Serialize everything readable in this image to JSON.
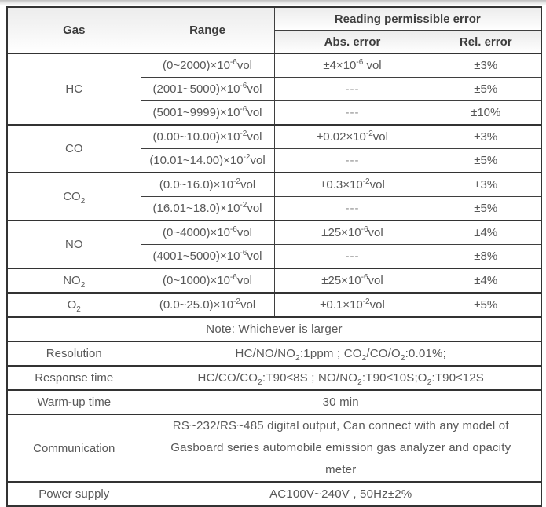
{
  "colors": {
    "border_thick": "#333333",
    "border_thin": "#3f3f3f",
    "header_text": "#3d3d3d",
    "body_text": "#585858",
    "header_bg_top": "#ececec",
    "page_bg": "#ffffff"
  },
  "table": {
    "header": {
      "gas": "Gas",
      "range": "Range",
      "reading_error": "Reading permissible error",
      "abs_error": "Abs. error",
      "rel_error": "Rel. error"
    },
    "groups": [
      {
        "gas": "HC",
        "rows": [
          {
            "range": [
              [
                "t",
                "(0~2000)×10"
              ],
              [
                "sup",
                "-6"
              ],
              [
                "t",
                "vol"
              ]
            ],
            "abs": [
              [
                "t",
                "±4×10"
              ],
              [
                "sup",
                "-6"
              ],
              [
                "t",
                " vol"
              ]
            ],
            "rel": "±3%"
          },
          {
            "range": [
              [
                "t",
                "(2001~5000)×10"
              ],
              [
                "sup",
                "-6"
              ],
              [
                "t",
                "vol"
              ]
            ],
            "abs": "---",
            "rel": "±5%"
          },
          {
            "range": [
              [
                "t",
                "(5001~9999)×10"
              ],
              [
                "sup",
                "-6"
              ],
              [
                "t",
                "vol"
              ]
            ],
            "abs": "---",
            "rel": "±10%"
          }
        ]
      },
      {
        "gas": "CO",
        "rows": [
          {
            "range": [
              [
                "t",
                "(0.00~10.00)×10"
              ],
              [
                "sup",
                "-2"
              ],
              [
                "t",
                "vol"
              ]
            ],
            "abs": [
              [
                "t",
                "±0.02×10"
              ],
              [
                "sup",
                "-2"
              ],
              [
                "t",
                "vol"
              ]
            ],
            "rel": "±3%"
          },
          {
            "range": [
              [
                "t",
                "(10.01~14.00)×10"
              ],
              [
                "sup",
                "-2"
              ],
              [
                "t",
                "vol"
              ]
            ],
            "abs": "---",
            "rel": "±5%"
          }
        ]
      },
      {
        "gas": [
          [
            "t",
            "CO"
          ],
          [
            "sub",
            "2"
          ]
        ],
        "rows": [
          {
            "range": [
              [
                "t",
                "(0.0~16.0)×10"
              ],
              [
                "sup",
                "-2"
              ],
              [
                "t",
                "vol"
              ]
            ],
            "abs": [
              [
                "t",
                "±0.3×10"
              ],
              [
                "sup",
                "-2"
              ],
              [
                "t",
                "vol"
              ]
            ],
            "rel": "±3%"
          },
          {
            "range": [
              [
                "t",
                "(16.01~18.0)×10"
              ],
              [
                "sup",
                "-2"
              ],
              [
                "t",
                "vol"
              ]
            ],
            "abs": "---",
            "rel": "±5%"
          }
        ]
      },
      {
        "gas": "NO",
        "rows": [
          {
            "range": [
              [
                "t",
                "(0~4000)×10"
              ],
              [
                "sup",
                "-6"
              ],
              [
                "t",
                "vol"
              ]
            ],
            "abs": [
              [
                "t",
                "±25×10"
              ],
              [
                "sup",
                "-6"
              ],
              [
                "t",
                "vol"
              ]
            ],
            "rel": "±4%"
          },
          {
            "range": [
              [
                "t",
                "(4001~5000)×10"
              ],
              [
                "sup",
                "-6"
              ],
              [
                "t",
                "vol"
              ]
            ],
            "abs": "---",
            "rel": "±8%"
          }
        ]
      },
      {
        "gas": [
          [
            "t",
            "NO"
          ],
          [
            "sub",
            "2"
          ]
        ],
        "rows": [
          {
            "range": [
              [
                "t",
                "(0~1000)×10"
              ],
              [
                "sup",
                "-6"
              ],
              [
                "t",
                "vol"
              ]
            ],
            "abs": [
              [
                "t",
                "±25×10"
              ],
              [
                "sup",
                "-6"
              ],
              [
                "t",
                "vol"
              ]
            ],
            "rel": "±4%"
          }
        ]
      },
      {
        "gas": [
          [
            "t",
            "O"
          ],
          [
            "sub",
            "2"
          ]
        ],
        "rows": [
          {
            "range": [
              [
                "t",
                "(0.0~25.0)×10"
              ],
              [
                "sup",
                "-2"
              ],
              [
                "t",
                "vol"
              ]
            ],
            "abs": [
              [
                "t",
                "±0.1×10"
              ],
              [
                "sup",
                "-2"
              ],
              [
                "t",
                "vol"
              ]
            ],
            "rel": "±5%"
          }
        ]
      }
    ],
    "note": "Note: Whichever is larger",
    "specs": [
      {
        "label": "Resolution",
        "value": [
          [
            "t",
            "HC/NO/NO"
          ],
          [
            "sub",
            "2"
          ],
          [
            "t",
            ":1ppm ; CO"
          ],
          [
            "sub",
            "2"
          ],
          [
            "t",
            "/CO/O"
          ],
          [
            "sub",
            "2"
          ],
          [
            "t",
            ":0.01%;"
          ]
        ]
      },
      {
        "label": "Response time",
        "value": [
          [
            "t",
            "HC/CO/CO"
          ],
          [
            "sub",
            "2"
          ],
          [
            "t",
            ":T90≤8S ; NO/NO"
          ],
          [
            "sub",
            "2"
          ],
          [
            "t",
            ":T90≤10S;O"
          ],
          [
            "sub",
            "2"
          ],
          [
            "t",
            ":T90≤12S"
          ]
        ]
      },
      {
        "label": "Warm-up time",
        "value": "30 min"
      },
      {
        "label": "Communication",
        "value": "RS~232/RS~485 digital output, Can connect with any model of Gasboard series automobile emission gas analyzer and opacity meter"
      },
      {
        "label": "Power supply",
        "value": "AC100V~240V , 50Hz±2%"
      }
    ]
  }
}
